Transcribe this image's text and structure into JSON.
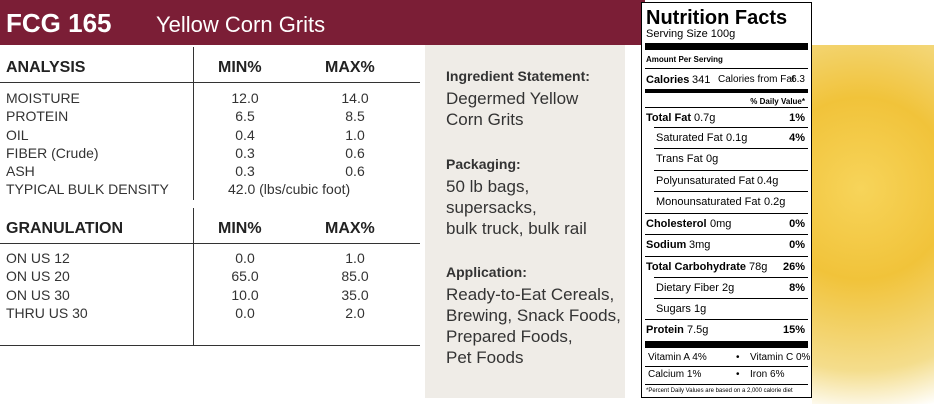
{
  "header": {
    "code": "FCG 165",
    "name": "Yellow Corn Grits"
  },
  "analysis": {
    "headers": [
      "ANALYSIS",
      "MIN%",
      "MAX%"
    ],
    "rows": [
      [
        "MOISTURE",
        "12.0",
        "14.0"
      ],
      [
        "PROTEIN",
        "6.5",
        "8.5"
      ],
      [
        "OIL",
        "0.4",
        "1.0"
      ],
      [
        "FIBER (Crude)",
        "0.3",
        "0.6"
      ],
      [
        "ASH",
        "0.3",
        "0.6"
      ]
    ],
    "bulk_density": {
      "label": "TYPICAL BULK DENSITY",
      "value": "42.0 (lbs/cubic foot)"
    }
  },
  "granulation": {
    "headers": [
      "GRANULATION",
      "MIN%",
      "MAX%"
    ],
    "rows": [
      [
        "ON US 12",
        "0.0",
        "1.0"
      ],
      [
        "ON US 20",
        "65.0",
        "85.0"
      ],
      [
        "ON US 30",
        "10.0",
        "35.0"
      ],
      [
        "THRU US 30",
        "0.0",
        "2.0"
      ]
    ]
  },
  "details": [
    {
      "heading": "Ingredient Statement:",
      "lines": [
        "Degermed Yellow",
        "Corn Grits"
      ]
    },
    {
      "heading": "Packaging:",
      "lines": [
        "50 lb bags,",
        "supersacks,",
        "bulk truck, bulk rail"
      ]
    },
    {
      "heading": "Application:",
      "lines": [
        "Ready-to-Eat Cereals,",
        "Brewing, Snack Foods,",
        "Prepared Foods,",
        "Pet Foods"
      ]
    }
  ],
  "nutrition": {
    "title": "Nutrition Facts",
    "serving": "Serving Size 100g",
    "amount_per_serving": "Amount Per Serving",
    "calories": {
      "label": "Calories",
      "value": "341",
      "fat_label": "Calories from Fat",
      "fat_value": "6.3"
    },
    "daily_value_header": "% Daily Value*",
    "rows": [
      {
        "label": "Total Fat",
        "amount": "0.7g",
        "dv": "1%"
      },
      {
        "label": "Saturated Fat",
        "amount": "0.1g",
        "dv": "4%"
      },
      {
        "label": "Trans Fat",
        "amount": "0g"
      },
      {
        "label": "Polyunsaturated Fat",
        "amount": "0.4g"
      },
      {
        "label": "Monounsaturated Fat",
        "amount": "0.2g"
      },
      {
        "label": "Cholesterol",
        "amount": "0mg",
        "dv": "0%"
      },
      {
        "label": "Sodium",
        "amount": "3mg",
        "dv": "0%"
      },
      {
        "label": "Total Carbohydrate",
        "amount": "78g",
        "dv": "26%"
      },
      {
        "label": "Dietary Fiber",
        "amount": "2g",
        "dv": "8%"
      },
      {
        "label": "Sugars",
        "amount": "1g"
      },
      {
        "label": "Protein",
        "amount": "7.5g",
        "dv": "15%"
      }
    ],
    "vitamins": [
      [
        "Vitamin A 4%",
        "Vitamin C 0%"
      ],
      [
        "Calcium 1%",
        "Iron 6%"
      ]
    ],
    "separator": "•",
    "footnote": "*Percent Daily Values are based on a 2,000 calorie diet"
  }
}
